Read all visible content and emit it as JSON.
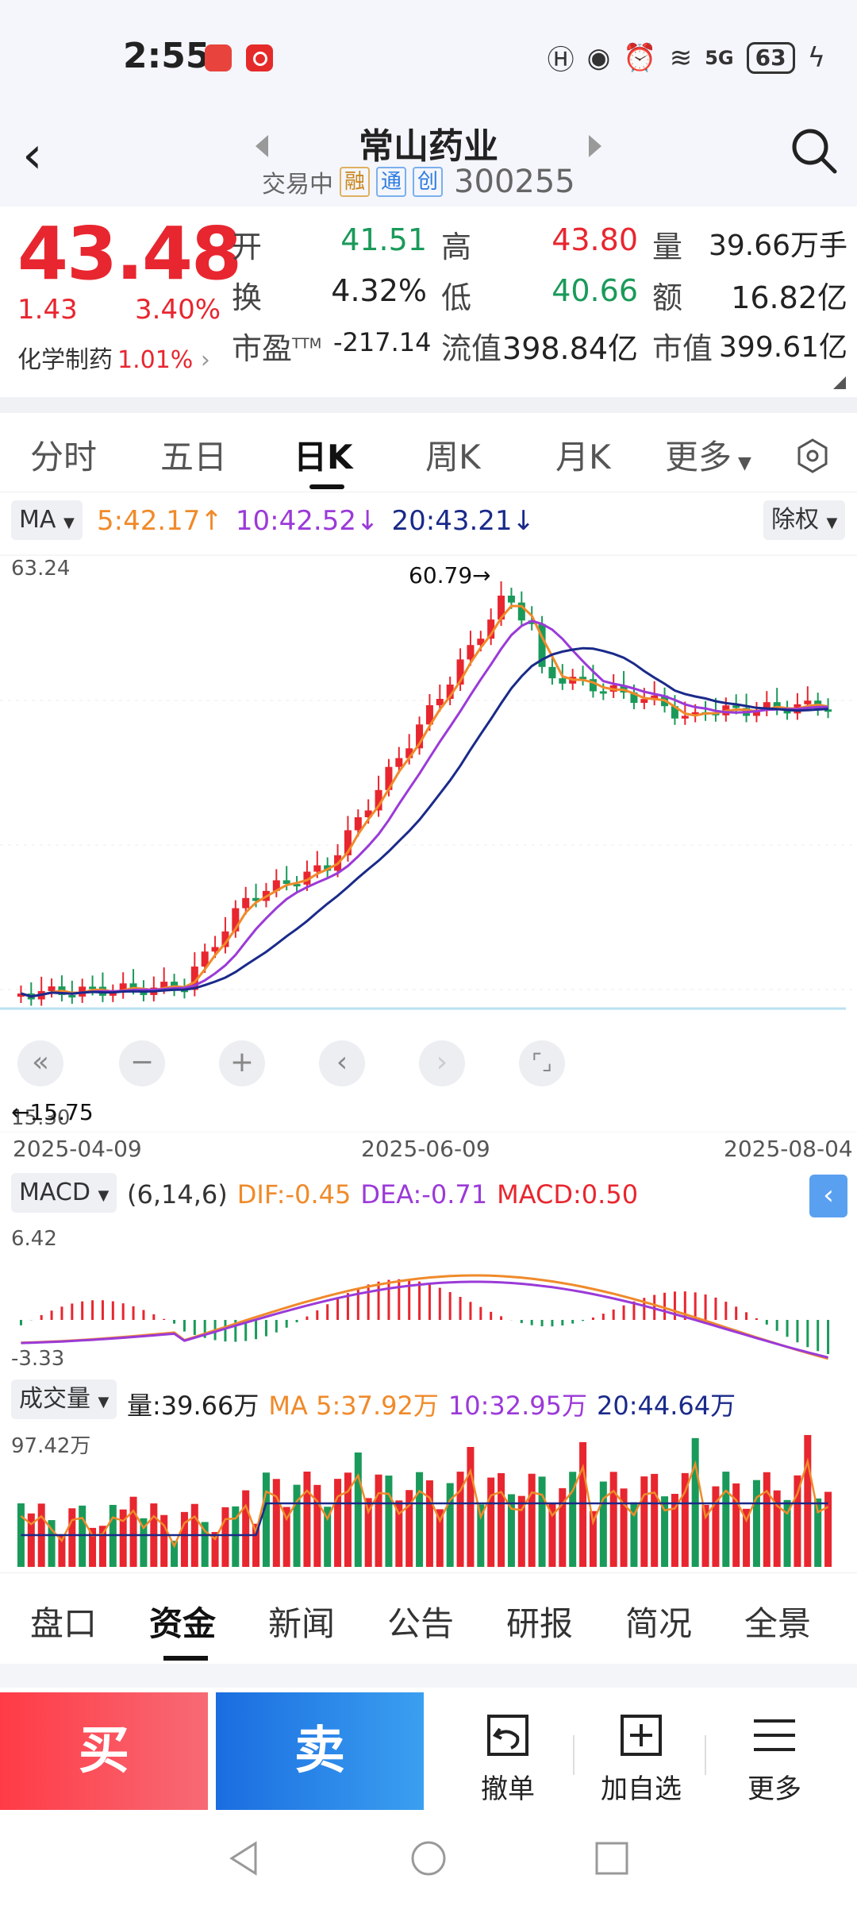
{
  "status": {
    "time": "2:55",
    "battery": "63",
    "network": "5G"
  },
  "header": {
    "title": "常山药业",
    "trading_status": "交易中",
    "tags": [
      "融",
      "通",
      "创"
    ],
    "code": "300255"
  },
  "quote": {
    "price": "43.48",
    "change": "1.43",
    "change_pct": "3.40%",
    "sector_name": "化学制药",
    "sector_pct": "1.01%",
    "fields": {
      "open_label": "开",
      "open": "41.51",
      "high_label": "高",
      "high": "43.80",
      "volume_label": "量",
      "volume": "39.66万手",
      "turnover_label": "换",
      "turnover": "4.32%",
      "low_label": "低",
      "low": "40.66",
      "amount_label": "额",
      "amount": "16.82亿",
      "pe_label": "市盈",
      "pe_sup": "TTM",
      "pe": "-217.14",
      "float_cap_label": "流值",
      "float_cap": "398.84亿",
      "market_cap_label": "市值",
      "market_cap": "399.61亿"
    }
  },
  "chart_tabs": [
    "分时",
    "五日",
    "日K",
    "周K",
    "月K",
    "更多"
  ],
  "ma_bar": {
    "selector": "MA",
    "ma5": "5:42.17",
    "ma10": "10:42.52",
    "ma20": "20:43.21",
    "adjust": "除权"
  },
  "kline": {
    "y_top_label": "63.24",
    "y_bottom_label": "15.30",
    "high_marker": "60.79",
    "low_marker": "15.75",
    "dates": [
      "2025-04-09",
      "2025-06-09",
      "2025-08-04"
    ]
  },
  "macd": {
    "selector": "MACD",
    "params": "(6,14,6)",
    "dif": "DIF:-0.45",
    "dea": "DEA:-0.71",
    "macd": "MACD:0.50",
    "y_top": "6.42",
    "y_bottom": "-3.33"
  },
  "volume": {
    "selector": "成交量",
    "vol": "量:39.66万",
    "ma5": "MA 5:37.92万",
    "ma10": "10:32.95万",
    "ma20": "20:44.64万",
    "y_top": "97.42万"
  },
  "bottom_tabs": [
    "盘口",
    "资金",
    "新闻",
    "公告",
    "研报",
    "简况",
    "全景"
  ],
  "actions": {
    "buy": "买",
    "sell": "卖",
    "cancel": "撤单",
    "add_watch": "加自选",
    "more": "更多"
  },
  "colors": {
    "up": "#e8262f",
    "down": "#1a9a5a",
    "ma5": "#f08a2a",
    "ma10": "#9b3ad8",
    "ma20": "#1a2a8a"
  }
}
